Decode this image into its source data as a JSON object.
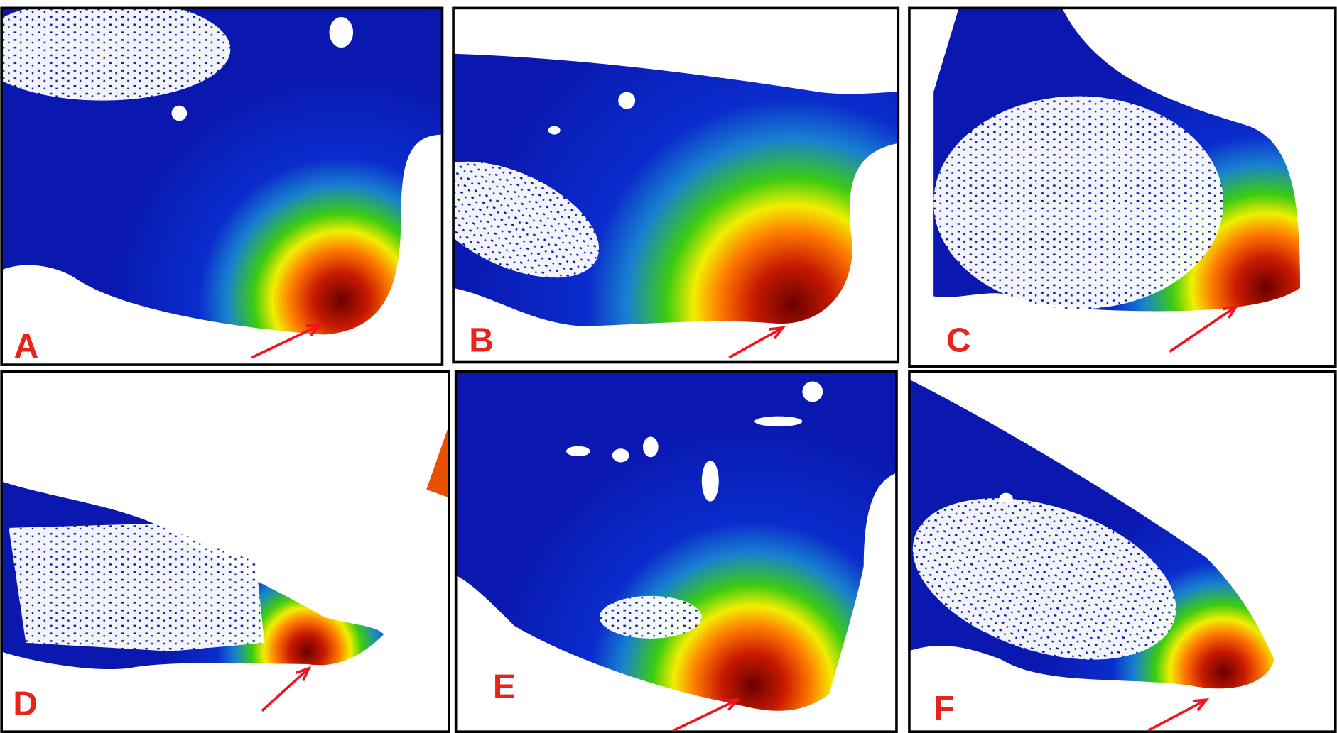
{
  "panels": [
    {
      "label": "A"
    },
    {
      "label": "B"
    },
    {
      "label": "C"
    },
    {
      "label": "D"
    },
    {
      "label": "E"
    },
    {
      "label": "F"
    }
  ]
}
